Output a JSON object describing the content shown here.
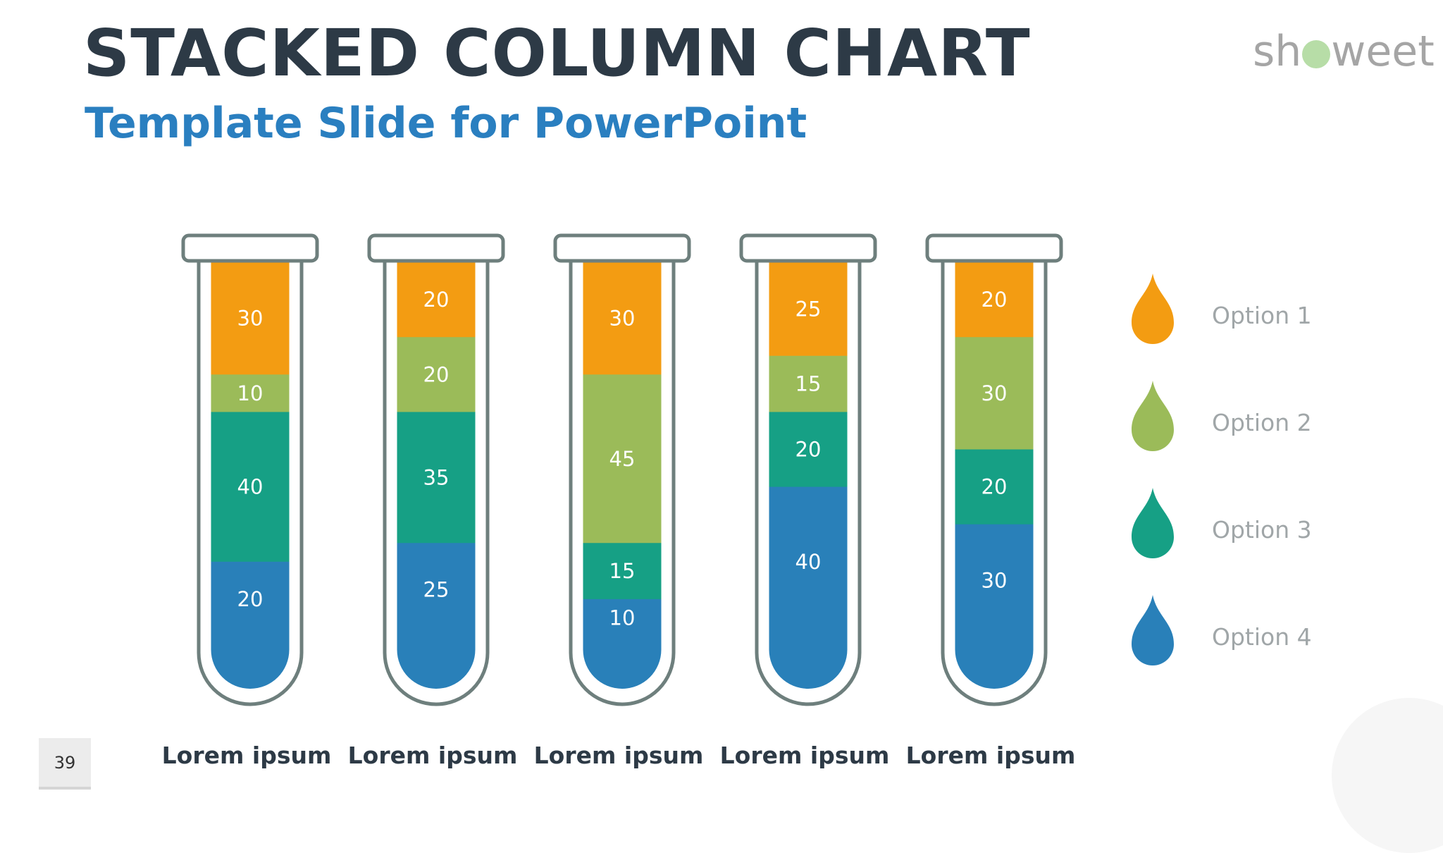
{
  "title": "STACKED COLUMN CHART",
  "subtitle": "Template Slide for PowerPoint",
  "logo_text": "showeet",
  "page_number": "39",
  "chart_data": {
    "type": "bar",
    "stacked": true,
    "categories": [
      "Lorem ipsum",
      "Lorem ipsum",
      "Lorem ipsum",
      "Lorem ipsum",
      "Lorem ipsum"
    ],
    "series": [
      {
        "name": "Option 1",
        "color": "#f39c12",
        "values": [
          30,
          20,
          30,
          25,
          20
        ]
      },
      {
        "name": "Option 2",
        "color": "#9bbb59",
        "values": [
          10,
          20,
          45,
          15,
          30
        ]
      },
      {
        "name": "Option 3",
        "color": "#16a085",
        "values": [
          40,
          35,
          15,
          20,
          20
        ]
      },
      {
        "name": "Option 4",
        "color": "#2980b9",
        "values": [
          20,
          25,
          10,
          40,
          30
        ]
      }
    ],
    "ylim": [
      0,
      100
    ],
    "grid": false,
    "legend_position": "right",
    "data_labels": true
  }
}
